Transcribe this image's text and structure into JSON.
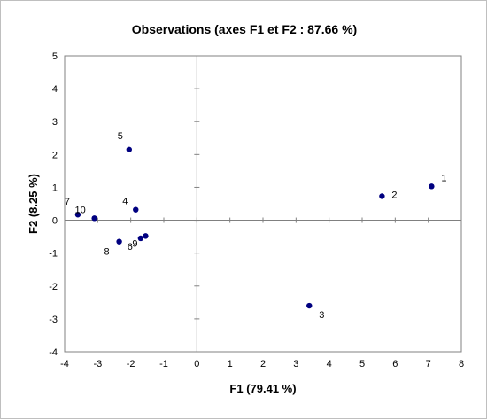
{
  "chart_data": {
    "type": "scatter",
    "title": "Observations (axes F1 et F2 : 87.66 %)",
    "xlabel": "F1 (79.41 %)",
    "ylabel": "F2 (8.25 %)",
    "xlim": [
      -4,
      8
    ],
    "ylim": [
      -4,
      5
    ],
    "xticks": [
      -4,
      -3,
      -2,
      -1,
      0,
      1,
      2,
      3,
      4,
      5,
      6,
      7,
      8
    ],
    "yticks": [
      -4,
      -3,
      -2,
      -1,
      0,
      1,
      2,
      3,
      4,
      5
    ],
    "grid": false,
    "marker_color": "#000080",
    "points": [
      {
        "label": "1",
        "x": 7.1,
        "y": 1.03
      },
      {
        "label": "2",
        "x": 5.6,
        "y": 0.73
      },
      {
        "label": "3",
        "x": 3.4,
        "y": -2.6
      },
      {
        "label": "4",
        "x": -1.85,
        "y": 0.32
      },
      {
        "label": "5",
        "x": -2.05,
        "y": 2.15
      },
      {
        "label": "6",
        "x": -1.7,
        "y": -0.55
      },
      {
        "label": "7",
        "x": -3.6,
        "y": 0.17
      },
      {
        "label": "8",
        "x": -2.35,
        "y": -0.65
      },
      {
        "label": "9",
        "x": -1.55,
        "y": -0.48
      },
      {
        "label": "10",
        "x": -3.1,
        "y": 0.06
      }
    ]
  }
}
